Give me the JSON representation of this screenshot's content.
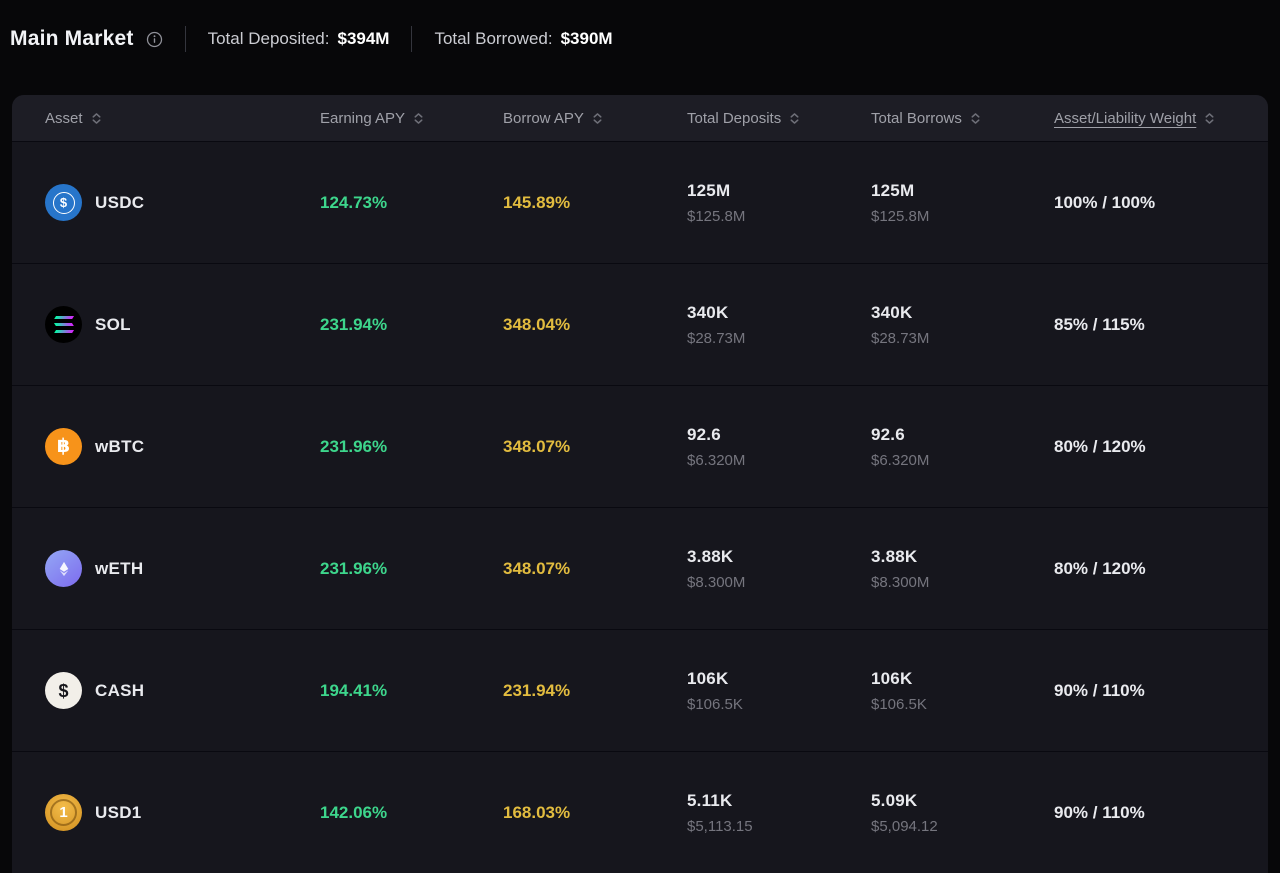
{
  "header": {
    "title": "Main Market",
    "stats": [
      {
        "label": "Total Deposited:",
        "value": "$394M"
      },
      {
        "label": "Total Borrowed:",
        "value": "$390M"
      }
    ]
  },
  "table": {
    "columns": [
      "Asset",
      "Earning APY",
      "Borrow APY",
      "Total Deposits",
      "Total Borrows",
      "Asset/Liability Weight"
    ],
    "rows": [
      {
        "asset": "USDC",
        "icon": "usdc",
        "earning_apy": "124.73%",
        "borrow_apy": "145.89%",
        "total_deposits": "125M",
        "total_deposits_usd": "$125.8M",
        "total_borrows": "125M",
        "total_borrows_usd": "$125.8M",
        "weight": "100% / 100%"
      },
      {
        "asset": "SOL",
        "icon": "sol",
        "earning_apy": "231.94%",
        "borrow_apy": "348.04%",
        "total_deposits": "340K",
        "total_deposits_usd": "$28.73M",
        "total_borrows": "340K",
        "total_borrows_usd": "$28.73M",
        "weight": "85% / 115%"
      },
      {
        "asset": "wBTC",
        "icon": "wbtc",
        "earning_apy": "231.96%",
        "borrow_apy": "348.07%",
        "total_deposits": "92.6",
        "total_deposits_usd": "$6.320M",
        "total_borrows": "92.6",
        "total_borrows_usd": "$6.320M",
        "weight": "80% / 120%"
      },
      {
        "asset": "wETH",
        "icon": "weth",
        "earning_apy": "231.96%",
        "borrow_apy": "348.07%",
        "total_deposits": "3.88K",
        "total_deposits_usd": "$8.300M",
        "total_borrows": "3.88K",
        "total_borrows_usd": "$8.300M",
        "weight": "80% / 120%"
      },
      {
        "asset": "CASH",
        "icon": "cash",
        "earning_apy": "194.41%",
        "borrow_apy": "231.94%",
        "total_deposits": "106K",
        "total_deposits_usd": "$106.5K",
        "total_borrows": "106K",
        "total_borrows_usd": "$106.5K",
        "weight": "90% / 110%"
      },
      {
        "asset": "USD1",
        "icon": "usd1",
        "earning_apy": "142.06%",
        "borrow_apy": "168.03%",
        "total_deposits": "5.11K",
        "total_deposits_usd": "$5,113.15",
        "total_borrows": "5.09K",
        "total_borrows_usd": "$5,094.12",
        "weight": "90% / 110%"
      }
    ]
  },
  "icons": {
    "usdc": {
      "glyph": "$",
      "bg": "#2775ca"
    },
    "sol": {
      "bg": "#000000",
      "bar_gradient": "linear-gradient(90deg,#00ffa3,#dc1fff)"
    },
    "wbtc": {
      "glyph": "฿",
      "bg": "#f7931a"
    },
    "weth": {
      "bg": "linear-gradient(140deg,#94a8f5 0%,#7d6bee 100%)"
    },
    "cash": {
      "glyph": "$",
      "bg": "#f2efe9",
      "fg": "#17171c"
    },
    "usd1": {
      "glyph": "1",
      "bg": "radial-gradient(circle at 50% 35%,#f3bc4a,#d18f1f)",
      "fg": "#ffffff"
    }
  },
  "colors": {
    "page_bg": "#070709",
    "table_bg": "#16161d",
    "table_header_bg": "#1d1d25",
    "row_divider": "#090910",
    "text_primary": "#e9eaee",
    "text_secondary": "#75757e",
    "header_text": "#9fa0a8",
    "earning_apy": "#3dd68c",
    "borrow_apy": "#e2bc3f"
  }
}
